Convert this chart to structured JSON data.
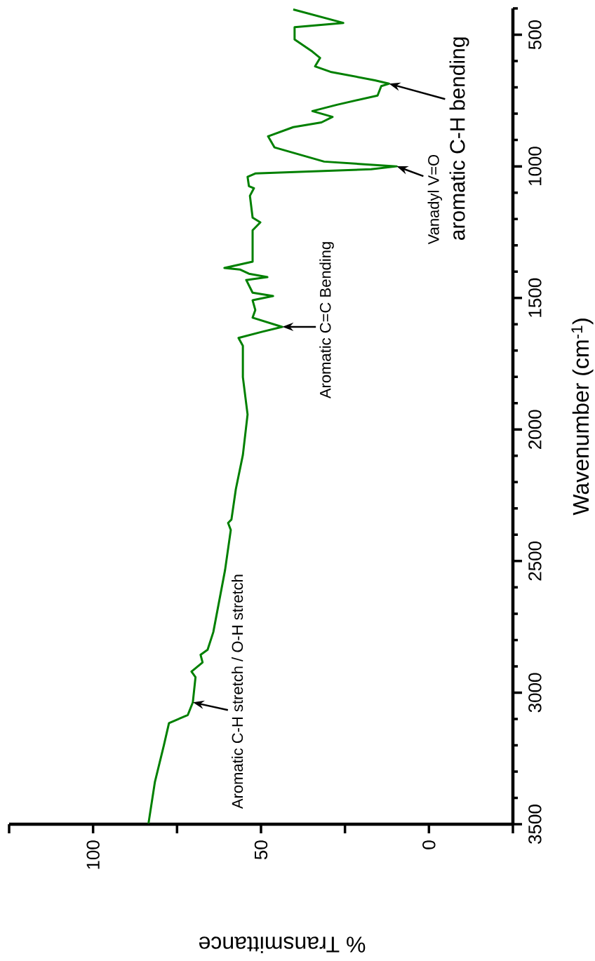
{
  "chart_data": {
    "type": "line",
    "xlabel": "% Transmittance",
    "ylabel": "Wavenumber (cm$^{-1}$)",
    "xlim": [
      125,
      -25
    ],
    "xticks": [
      {
        "value": 125,
        "label": null
      },
      100,
      {
        "value": 75,
        "label": null
      },
      50,
      {
        "value": 25,
        "label": null
      },
      0,
      {
        "value": -25,
        "label": null
      }
    ],
    "ylim": [
      3500,
      400
    ],
    "yticks": [
      3500,
      {
        "value": 3400,
        "label": null
      },
      {
        "value": 3300,
        "label": null
      },
      {
        "value": 3200,
        "label": null
      },
      {
        "value": 3100,
        "label": null
      },
      3000,
      {
        "value": 2900,
        "label": null
      },
      {
        "value": 2800,
        "label": null
      },
      {
        "value": 2700,
        "label": null
      },
      {
        "value": 2600,
        "label": null
      },
      2500,
      {
        "value": 2400,
        "label": null
      },
      {
        "value": 2300,
        "label": null
      },
      {
        "value": 2200,
        "label": null
      },
      {
        "value": 2100,
        "label": null
      },
      2000,
      {
        "value": 1900,
        "label": null
      },
      {
        "value": 1800,
        "label": null
      },
      {
        "value": 1700,
        "label": null
      },
      {
        "value": 1600,
        "label": null
      },
      1500,
      {
        "value": 1400,
        "label": null
      },
      {
        "value": 1300,
        "label": null
      },
      {
        "value": 1200,
        "label": null
      },
      {
        "value": 1100,
        "label": null
      },
      1000,
      {
        "value": 900,
        "label": null
      },
      {
        "value": 800,
        "label": null
      },
      {
        "value": 700,
        "label": null
      },
      {
        "value": 600,
        "label": null
      },
      500,
      {
        "value": 400,
        "label": null
      }
    ],
    "grid": false,
    "marker": "none",
    "line_style": "solid",
    "series": [
      {
        "color": "#008000",
        "x": [
          83.5,
          81.6,
          78.9,
          77.4,
          71.8,
          70.3,
          69.5,
          70.7,
          67.4,
          68,
          65.9,
          64.2,
          60.7,
          59,
          59.8,
          58.8,
          57.5,
          55.4,
          54,
          55.4,
          55.4,
          56.7,
          49.8,
          43.7,
          52.5,
          51.7,
          52.5,
          46.4,
          52.5,
          54.4,
          48.1,
          53.6,
          56.3,
          60.9,
          52.5,
          52.5,
          50.2,
          52.5,
          53.3,
          52.1,
          53.6,
          54,
          51.7,
          17.2,
          9.6,
          31.2,
          46,
          47.9,
          40.4,
          32,
          28.7,
          34.7,
          27.4,
          15.3,
          14.2,
          11.9,
          16.1,
          29.3,
          33.9,
          32.4,
          34.7,
          40,
          40,
          25.5,
          40.4
        ],
        "values": [
          3497,
          3340,
          3199,
          3116,
          3085,
          3037,
          2941,
          2920,
          2885,
          2856,
          2837,
          2770,
          2534,
          2382,
          2355,
          2342,
          2227,
          2097,
          1943,
          1801,
          1682,
          1652,
          1629,
          1610,
          1575,
          1546,
          1509,
          1493,
          1480,
          1432,
          1421,
          1408,
          1392,
          1386,
          1362,
          1243,
          1213,
          1195,
          1112,
          1083,
          1075,
          1040,
          1027,
          1011,
          1000,
          982,
          928,
          886,
          851,
          833,
          812,
          790,
          766,
          731,
          695,
          686,
          673,
          641,
          620,
          588,
          564,
          518,
          471,
          455,
          404
        ]
      }
    ],
    "annotations": [
      {
        "text": "Aromatic C-H stretch / O-H stretch",
        "x": 70.3,
        "y": 3037
      },
      {
        "text": "Aromatic C=C Bending",
        "x": 43.7,
        "y": 1610
      },
      {
        "text": "Vanadyl V=O",
        "x": 9.6,
        "y": 1000
      },
      {
        "text": "aromatic C-H bending",
        "x": 11.9,
        "y": 686
      }
    ]
  }
}
